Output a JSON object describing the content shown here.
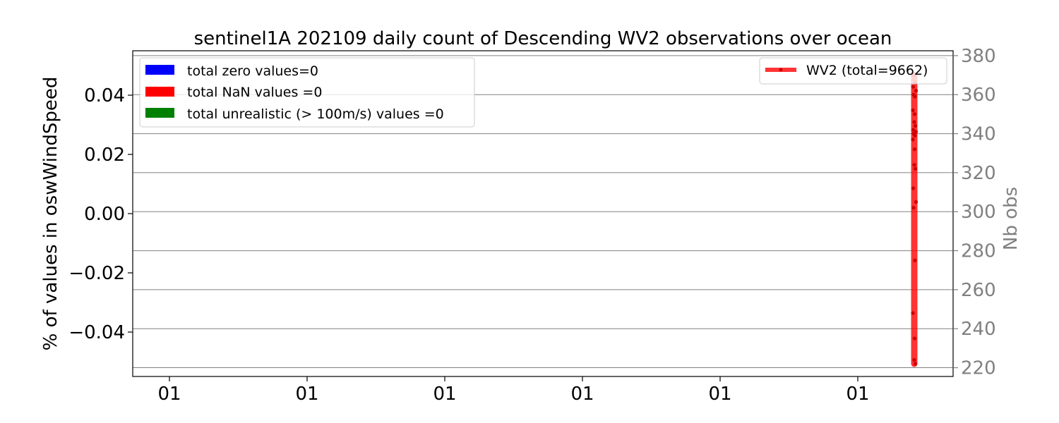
{
  "chart_data": {
    "type": "line",
    "title": "sentinel1A 202109 daily count of Descending WV2 observations over ocean",
    "ylabel_left": "% of values in oswWindSpeed",
    "ylabel_right": "Nb obs",
    "xlabel": "",
    "ylim_left": [
      -0.055,
      0.055
    ],
    "ylim_right": [
      215.5,
      382.5
    ],
    "yticks_left": [
      {
        "value": 0.04,
        "label": "0.04"
      },
      {
        "value": 0.02,
        "label": "0.02"
      },
      {
        "value": 0.0,
        "label": "0.00"
      },
      {
        "value": -0.02,
        "label": "−0.02"
      },
      {
        "value": -0.04,
        "label": "−0.04"
      }
    ],
    "yticks_right": [
      {
        "value": 380,
        "label": "380"
      },
      {
        "value": 360,
        "label": "360"
      },
      {
        "value": 340,
        "label": "340"
      },
      {
        "value": 320,
        "label": "320"
      },
      {
        "value": 300,
        "label": "300"
      },
      {
        "value": 280,
        "label": "280"
      },
      {
        "value": 260,
        "label": "260"
      },
      {
        "value": 240,
        "label": "240"
      },
      {
        "value": 220,
        "label": "220"
      }
    ],
    "xticks": [
      "01",
      "01",
      "01",
      "01",
      "01",
      "01"
    ],
    "grid": "right-axis horizontal",
    "legend_left": {
      "placement": "upper-left",
      "entries": [
        {
          "label": "total zero values=0",
          "color": "#0000ff"
        },
        {
          "label": "total NaN values =0",
          "color": "#ff0000"
        },
        {
          "label": "total unrealistic (> 100m/s) values =0",
          "color": "#008000"
        }
      ]
    },
    "legend_right": {
      "placement": "upper-right",
      "entries": [
        {
          "label": "WV2 (total=9662)",
          "color": "#ff0000"
        }
      ]
    },
    "series": [
      {
        "name": "WV2 (total=9662)",
        "color": "#ff0000",
        "axis": "right",
        "values": [
          370,
          366,
          364,
          362,
          360,
          359,
          352,
          350,
          346,
          344,
          342,
          341,
          340,
          339,
          337,
          332,
          324,
          322,
          312,
          305,
          302,
          275,
          248,
          235,
          224,
          222
        ]
      }
    ]
  }
}
